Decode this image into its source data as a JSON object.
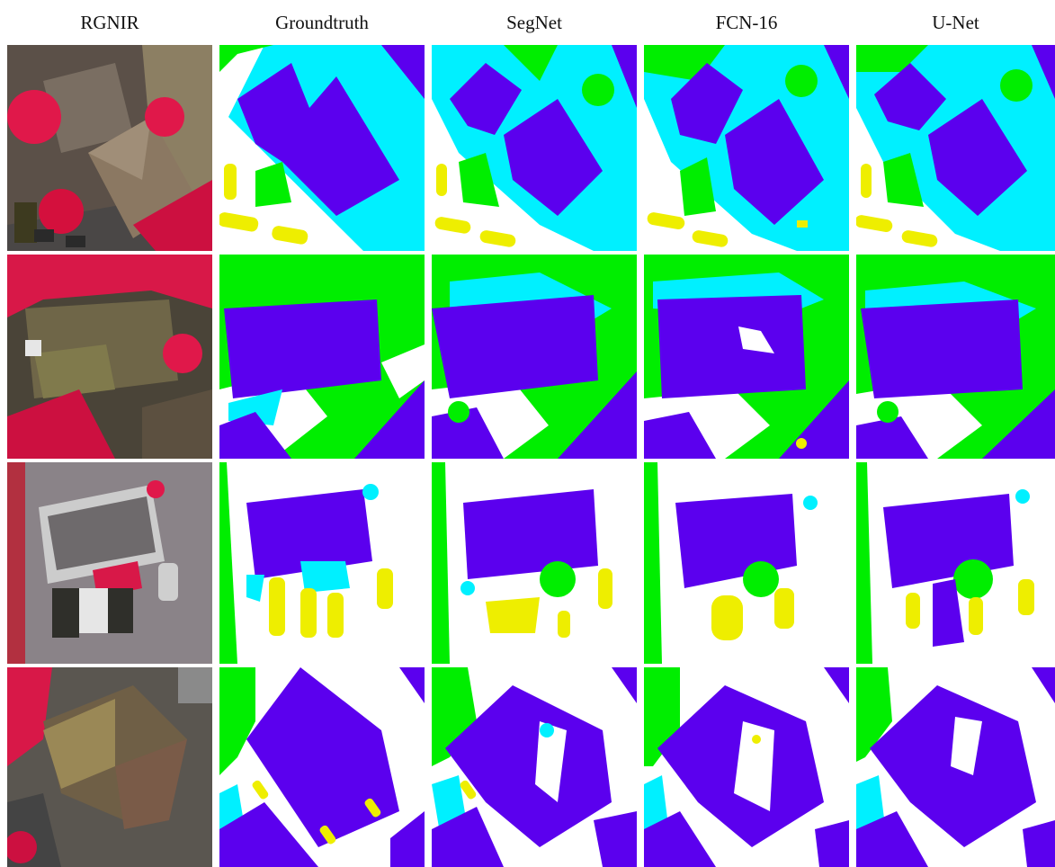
{
  "headers": [
    "RGNIR",
    "Groundtruth",
    "SegNet",
    "FCN-16",
    "U-Net"
  ],
  "classes": {
    "building": "#5b00ee",
    "low_vegetation": "#00f0ff",
    "tree": "#00ee00",
    "car": "#eeee00",
    "impervious_surface": "#ffffff"
  }
}
